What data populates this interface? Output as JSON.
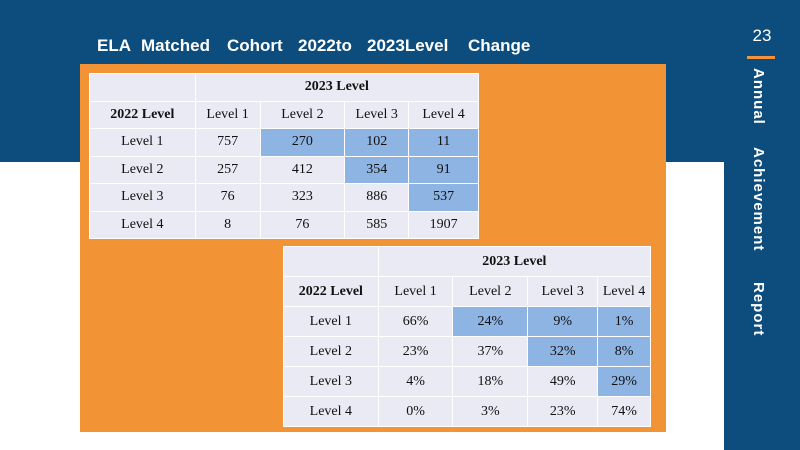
{
  "title_words": [
    "ELA",
    "Matched",
    "Cohort",
    "2022to",
    "2023Level",
    "Change"
  ],
  "page_number": "23",
  "sidebar_words": [
    "Annual",
    "Achievement",
    "Report"
  ],
  "colors": {
    "brand_blue": "#0c4d7d",
    "accent_orange": "#f29436",
    "highlight_blue": "#8eb4e3",
    "cell_bg": "#eaeaf4"
  },
  "count_table": {
    "col_group_header": "2023 Level",
    "row_header": "2022 Level",
    "columns": [
      "Level 1",
      "Level 2",
      "Level 3",
      "Level 4"
    ],
    "rows": [
      {
        "label": "Level 1",
        "values": [
          "757",
          "270",
          "102",
          "11"
        ],
        "highlight": [
          false,
          true,
          true,
          true
        ]
      },
      {
        "label": "Level 2",
        "values": [
          "257",
          "412",
          "354",
          "91"
        ],
        "highlight": [
          false,
          false,
          true,
          true
        ]
      },
      {
        "label": "Level 3",
        "values": [
          "76",
          "323",
          "886",
          "537"
        ],
        "highlight": [
          false,
          false,
          false,
          true
        ]
      },
      {
        "label": "Level 4",
        "values": [
          "8",
          "76",
          "585",
          "1907"
        ],
        "highlight": [
          false,
          false,
          false,
          false
        ]
      }
    ]
  },
  "percent_table": {
    "col_group_header": "2023 Level",
    "row_header": "2022 Level",
    "columns": [
      "Level 1",
      "Level 2",
      "Level 3",
      "Level 4"
    ],
    "rows": [
      {
        "label": "Level 1",
        "values": [
          "66%",
          "24%",
          "9%",
          "1%"
        ],
        "highlight": [
          false,
          true,
          true,
          true
        ]
      },
      {
        "label": "Level 2",
        "values": [
          "23%",
          "37%",
          "32%",
          "8%"
        ],
        "highlight": [
          false,
          false,
          true,
          true
        ]
      },
      {
        "label": "Level 3",
        "values": [
          "4%",
          "18%",
          "49%",
          "29%"
        ],
        "highlight": [
          false,
          false,
          false,
          true
        ]
      },
      {
        "label": "Level 4",
        "values": [
          "0%",
          "3%",
          "23%",
          "74%"
        ],
        "highlight": [
          false,
          false,
          false,
          false
        ]
      }
    ]
  }
}
